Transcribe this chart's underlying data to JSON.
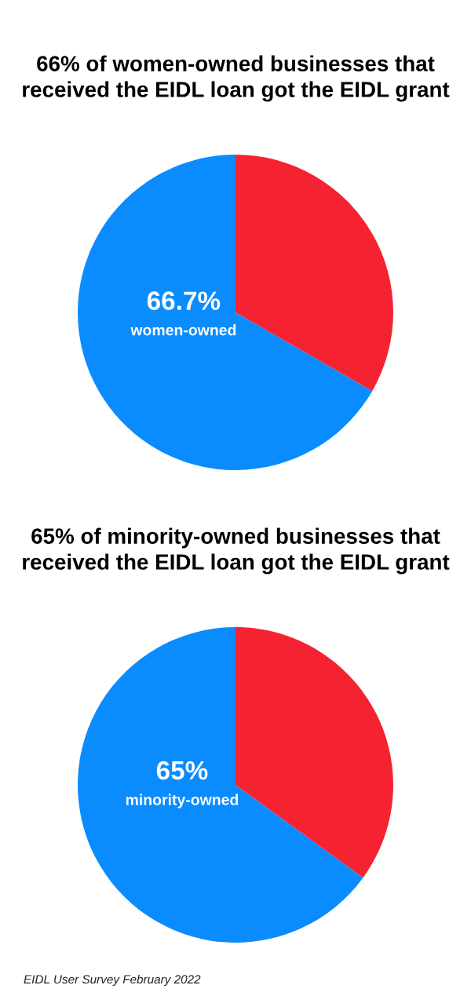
{
  "chart_data": [
    {
      "type": "pie",
      "title": "66% of women-owned businesses that received the EIDL loan got the EIDL grant",
      "categories": [
        "women-owned",
        null
      ],
      "values": [
        66.7,
        33.3
      ],
      "colors": [
        "#0a8cff",
        "#f52331"
      ],
      "value_labels": [
        "66.7%",
        null
      ]
    },
    {
      "type": "pie",
      "title": "65% of minority-owned businesses that received the EIDL loan got the EIDL grant",
      "categories": [
        "minority-owned",
        null
      ],
      "values": [
        65,
        35
      ],
      "colors": [
        "#0a8cff",
        "#f52331"
      ],
      "value_labels": [
        "65%",
        null
      ],
      "annotations": [
        "EIDL User Survey February 2022"
      ]
    }
  ]
}
